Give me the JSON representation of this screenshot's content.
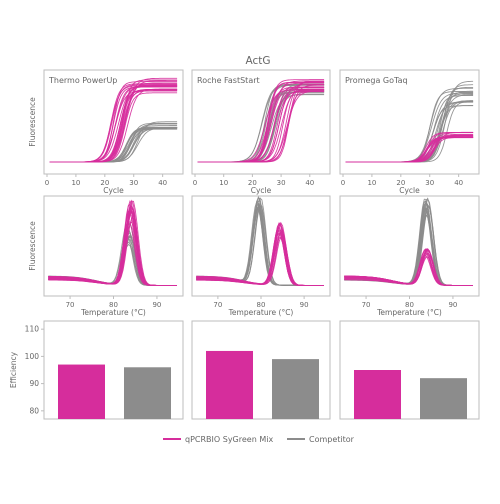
{
  "colors": {
    "product": "#d62d9c",
    "competitor": "#8c8c8c",
    "frame": "#bdbdbd",
    "text": "#666666"
  },
  "chart_data": {
    "title": "ActG",
    "legend": [
      {
        "label": "qPCRBIO SyGreen Mix",
        "color": "#d62d9c"
      },
      {
        "label": "Competitor",
        "color": "#8c8c8c"
      }
    ],
    "amplification": {
      "type": "line",
      "xlabel": "Cycle",
      "ylabel": "Fluorescence",
      "xlim": [
        0,
        46
      ],
      "xticks": [
        0,
        10,
        20,
        30,
        40
      ],
      "panels": [
        {
          "label": "Thermo PowerUp",
          "product": {
            "count": 22,
            "ct": [
              22,
              28
            ],
            "plateau": [
              0.8,
              0.98
            ]
          },
          "competitor": {
            "count": 16,
            "ct": [
              27,
              32
            ],
            "plateau": [
              0.38,
              0.48
            ]
          }
        },
        {
          "label": "Roche FastStart",
          "product": {
            "count": 20,
            "ct": [
              24,
              33
            ],
            "plateau": [
              0.8,
              0.98
            ]
          },
          "competitor": {
            "count": 16,
            "ct": [
              23,
              29
            ],
            "plateau": [
              0.78,
              0.92
            ]
          }
        },
        {
          "label": "Promega GoTaq",
          "product": {
            "count": 16,
            "ct": [
              28,
              32
            ],
            "plateau": [
              0.28,
              0.35
            ]
          },
          "competitor": {
            "count": 18,
            "ct": [
              30,
              37
            ],
            "plateau": [
              0.65,
              0.95
            ]
          }
        }
      ]
    },
    "melt": {
      "type": "line",
      "xlabel": "Temperature (°C)",
      "ylabel": "Fluorescence",
      "xlim": [
        64,
        96
      ],
      "xticks": [
        70,
        80,
        90
      ],
      "panels": [
        {
          "product": {
            "count": 16,
            "peak_temp": 84,
            "peak": [
              0.72,
              1.0
            ]
          },
          "competitor": {
            "count": 12,
            "peak_temp": 83.5,
            "peak": [
              0.45,
              0.72
            ]
          }
        },
        {
          "product": {
            "count": 16,
            "peak_temp": 84.5,
            "peak": [
              0.55,
              0.72
            ]
          },
          "competitor": {
            "count": 14,
            "peak_temp": 79.5,
            "peak": [
              0.85,
              1.0
            ]
          }
        },
        {
          "product": {
            "count": 12,
            "peak_temp": 84,
            "peak": [
              0.32,
              0.42
            ]
          },
          "competitor": {
            "count": 16,
            "peak_temp": 84,
            "peak": [
              0.78,
              1.0
            ]
          }
        }
      ]
    },
    "efficiency": {
      "type": "bar",
      "ylabel": "Efficiency",
      "ylim": [
        77,
        113
      ],
      "yticks": [
        80,
        90,
        100,
        110
      ],
      "panels": [
        {
          "values": [
            97,
            96
          ]
        },
        {
          "values": [
            102,
            99
          ]
        },
        {
          "values": [
            95,
            92
          ]
        }
      ]
    }
  }
}
